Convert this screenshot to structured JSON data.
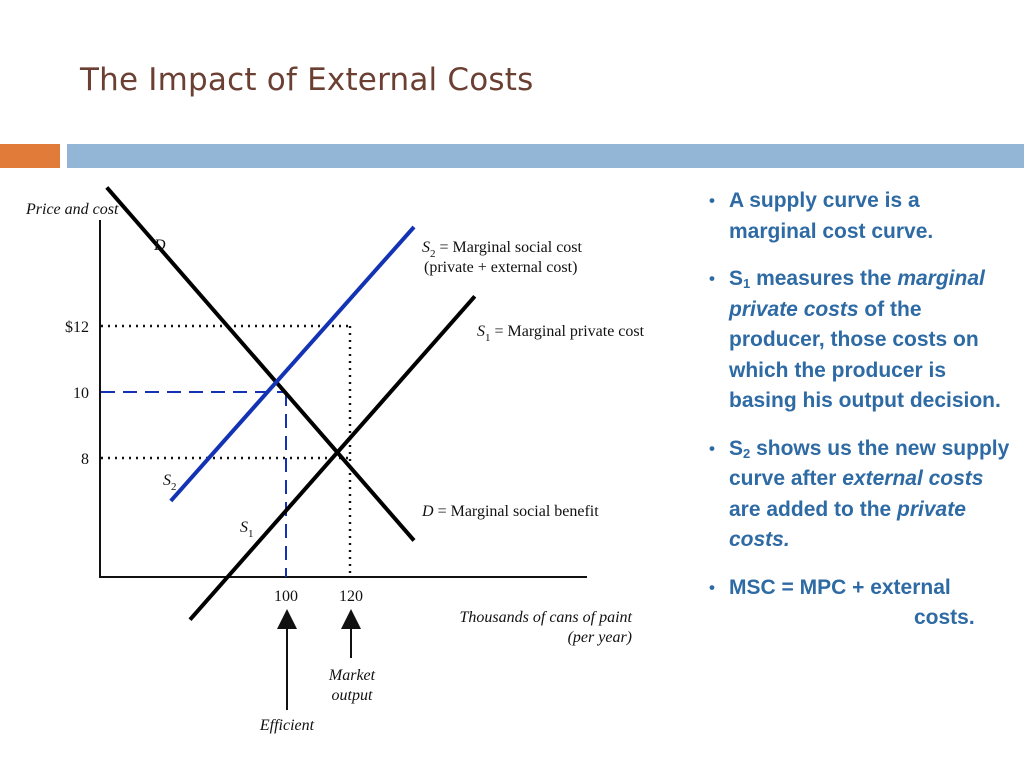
{
  "slide": {
    "title": "The Impact of External Costs",
    "colors": {
      "title": "#6b3f32",
      "orange_bar": "#e07b39",
      "blue_bar": "#93b6d7",
      "bullet_text": "#2e6aa4"
    }
  },
  "chart_data": {
    "type": "line",
    "ylabel": "Price and cost",
    "xlabel_line1": "Thousands of cans of paint",
    "xlabel_line2": "(per year)",
    "y_ticks": [
      "$12",
      "10",
      "8"
    ],
    "x_ticks": [
      "100",
      "120"
    ],
    "series": [
      {
        "name": "D",
        "color": "#000000",
        "x": [
          44,
          140
        ],
        "y": [
          16.2,
          5.5
        ]
      },
      {
        "name": "S2",
        "color": "#1432b4",
        "x": [
          64,
          140
        ],
        "y": [
          6.7,
          15.0
        ]
      },
      {
        "name": "S1",
        "color": "#000000",
        "x": [
          70,
          159
        ],
        "y": [
          3.1,
          12.9
        ]
      }
    ],
    "curve_labels": {
      "d_top": "D",
      "d_bottom_sym": "D",
      "d_bottom_text": " = Marginal social benefit",
      "s2_top_sym": "S",
      "s2_top_sub": "2",
      "s2_top_text": " = Marginal social cost",
      "s2_top_text2": "(private + external cost)",
      "s1_right_sym": "S",
      "s1_right_sub": "1",
      "s1_right_text": " = Marginal private cost",
      "s2_left_sym": "S",
      "s2_left_sub": "2",
      "s1_left_sym": "S",
      "s1_left_sub": "1"
    },
    "annotations": {
      "market_line1": "Market",
      "market_line2": "output",
      "efficient": "Efficient"
    },
    "reference_points": [
      {
        "name": "efficient",
        "x": 100,
        "y": 10
      },
      {
        "name": "market",
        "x": 120,
        "y": 8
      }
    ],
    "grid": false,
    "legend": "none"
  },
  "bullets": {
    "b1_text": "A supply curve is a marginal cost curve.",
    "b2_pre": "S",
    "b2_sub": "1",
    "b2_mid": " measures the ",
    "b2_em": "marginal private costs",
    "b2_post": " of the producer, those costs on which the producer is basing his output decision.",
    "b3_pre": "S",
    "b3_sub": "2",
    "b3_mid": " shows us the new supply curve after ",
    "b3_em1": "external costs",
    "b3_mid2": " are added to the ",
    "b3_em2": "private costs.",
    "b4_line1": "MSC = MPC + external",
    "b4_line2": "costs."
  }
}
